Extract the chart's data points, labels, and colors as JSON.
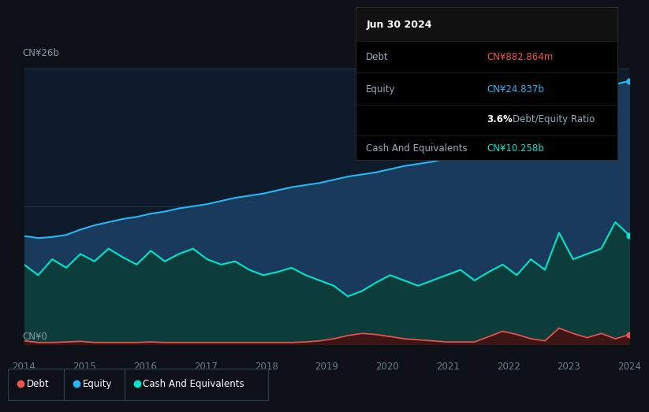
{
  "bg_color": "#0d1117",
  "plot_bg_color": "#0d1b2a",
  "grid_color": "#253545",
  "equity_color": "#29b6f6",
  "equity_fill": "#1a3a5c",
  "cash_color": "#00e5cc",
  "cash_fill": "#0d3d3a",
  "debt_color": "#ef5350",
  "debt_fill": "#3d1515",
  "ylim": [
    0,
    26
  ],
  "ylabel_top": "CN¥26b",
  "ylabel_bottom": "CN¥0",
  "x_labels": [
    "2014",
    "2015",
    "2016",
    "2017",
    "2018",
    "2019",
    "2020",
    "2021",
    "2022",
    "2023",
    "2024"
  ],
  "info_box": {
    "date": "Jun 30 2024",
    "debt_label": "Debt",
    "debt_value": "CN¥882.864m",
    "debt_color": "#ef5350",
    "equity_label": "Equity",
    "equity_value": "CN¥24.837b",
    "equity_color": "#29b6f6",
    "ratio_bold": "3.6%",
    "ratio_text": "Debt/Equity Ratio",
    "cash_label": "Cash And Equivalents",
    "cash_value": "CN¥10.258b",
    "cash_color": "#00e5cc"
  },
  "equity_data": [
    10.2,
    10.0,
    10.1,
    10.3,
    10.8,
    11.2,
    11.5,
    11.8,
    12.0,
    12.3,
    12.5,
    12.8,
    13.0,
    13.2,
    13.5,
    13.8,
    14.0,
    14.2,
    14.5,
    14.8,
    15.0,
    15.2,
    15.5,
    15.8,
    16.0,
    16.2,
    16.5,
    16.8,
    17.0,
    17.2,
    17.5,
    17.8,
    18.0,
    18.5,
    19.0,
    19.5,
    20.0,
    20.5,
    21.5,
    22.5,
    23.2,
    24.0,
    24.5,
    24.837
  ],
  "cash_data": [
    7.5,
    6.5,
    8.0,
    7.2,
    8.5,
    7.8,
    9.0,
    8.2,
    7.5,
    8.8,
    7.8,
    8.5,
    9.0,
    8.0,
    7.5,
    7.8,
    7.0,
    6.5,
    6.8,
    7.2,
    6.5,
    6.0,
    5.5,
    4.5,
    5.0,
    5.8,
    6.5,
    6.0,
    5.5,
    6.0,
    6.5,
    7.0,
    6.0,
    6.8,
    7.5,
    6.5,
    8.0,
    7.0,
    10.5,
    8.0,
    8.5,
    9.0,
    11.5,
    10.258
  ],
  "debt_data": [
    0.3,
    0.15,
    0.15,
    0.2,
    0.25,
    0.15,
    0.15,
    0.15,
    0.15,
    0.2,
    0.15,
    0.15,
    0.15,
    0.15,
    0.15,
    0.15,
    0.15,
    0.15,
    0.15,
    0.15,
    0.2,
    0.3,
    0.5,
    0.8,
    1.0,
    0.9,
    0.7,
    0.5,
    0.4,
    0.3,
    0.2,
    0.2,
    0.2,
    0.7,
    1.2,
    0.9,
    0.5,
    0.3,
    1.5,
    1.0,
    0.6,
    1.0,
    0.5,
    0.883
  ]
}
